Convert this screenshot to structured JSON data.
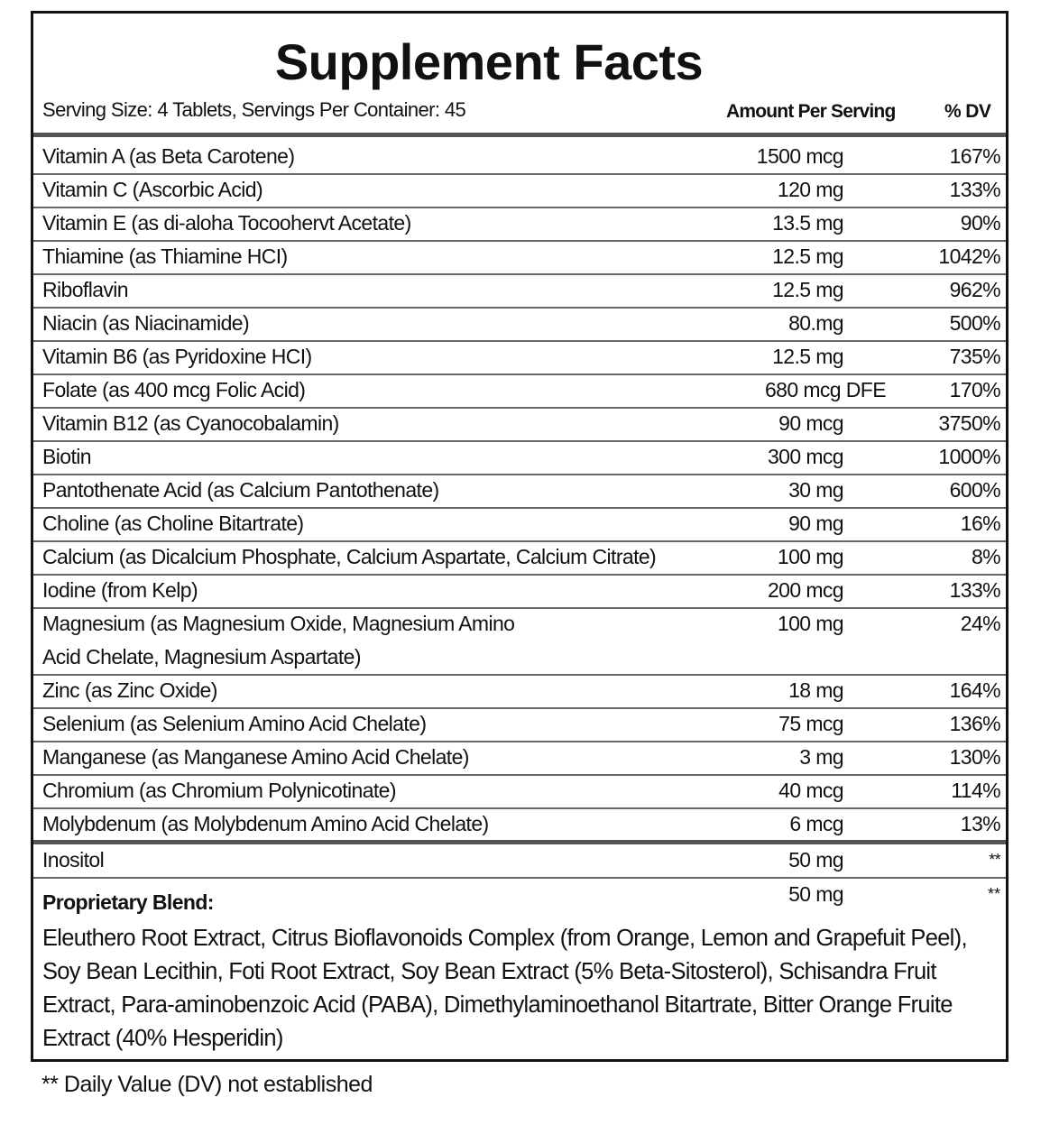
{
  "title": "Supplement Facts",
  "serving_info": "Serving Size: 4 Tablets, Servings Per Container: 45",
  "header_amount": "Amount Per Serving",
  "header_dv": "% DV",
  "nutrients": [
    {
      "name": "Vitamin A (as Beta Carotene)",
      "amount": "1500 mcg",
      "dv": "167%"
    },
    {
      "name": "Vitamin C (Ascorbic Acid)",
      "amount": "120 mg",
      "dv": "133%"
    },
    {
      "name": "Vitamin E (as di-aloha Tocoohervt Acetate)",
      "amount": "13.5 mg",
      "dv": "90%"
    },
    {
      "name": "Thiamine (as Thiamine HCI)",
      "amount": "12.5 mg",
      "dv": "1042%"
    },
    {
      "name": "Riboflavin",
      "amount": "12.5 mg",
      "dv": "962%"
    },
    {
      "name": "Niacin (as Niacinamide)",
      "amount": "80.mg",
      "dv": "500%"
    },
    {
      "name": "Vitamin B6 (as Pyridoxine HCI)",
      "amount": "12.5 mg",
      "dv": "735%"
    },
    {
      "name": "Folate (as 400 mcg Folic Acid)",
      "amount": "680 mcg DFE",
      "dv": "170%"
    },
    {
      "name": "Vitamin B12 (as Cyanocobalamin)",
      "amount": "90 mcg",
      "dv": "3750%"
    },
    {
      "name": "Biotin",
      "amount": "300 mcg",
      "dv": "1000%"
    },
    {
      "name": "Pantothenate Acid (as Calcium Pantothenate)",
      "amount": "30 mg",
      "dv": "600%"
    },
    {
      "name": "Choline (as Choline Bitartrate)",
      "amount": "90 mg",
      "dv": "16%"
    },
    {
      "name": "Calcium (as Dicalcium Phosphate, Calcium Aspartate, Calcium Citrate)",
      "amount": "100 mg",
      "dv": "8%"
    },
    {
      "name": "Iodine (from Kelp)",
      "amount": "200 mcg",
      "dv": "133%"
    },
    {
      "name": "Magnesium (as Magnesium Oxide, Magnesium Amino",
      "name_line2": "Acid Chelate, Magnesium Aspartate)",
      "amount": "100 mg",
      "dv": "24%"
    },
    {
      "name": "Zinc (as Zinc Oxide)",
      "amount": "18 mg",
      "dv": "164%"
    },
    {
      "name": "Selenium (as Selenium Amino Acid Chelate)",
      "amount": "75 mcg",
      "dv": "136%"
    },
    {
      "name": "Manganese (as Manganese Amino Acid Chelate)",
      "amount": "3 mg",
      "dv": "130%"
    },
    {
      "name": "Chromium (as Chromium Polynicotinate)",
      "amount": "40 mcg",
      "dv": "114%"
    },
    {
      "name": "Molybdenum (as Molybdenum Amino Acid Chelate)",
      "amount": "6 mcg",
      "dv": "13%"
    }
  ],
  "inositol": {
    "name": "Inositol",
    "amount": "50 mg",
    "dv": "**"
  },
  "blend": {
    "title": "Proprietary Blend:",
    "amount": "50 mg",
    "dv": "**",
    "ingredients": "Eleuthero Root Extract, Citrus Bioflavonoids Complex (from Orange, Lemon and Grapefuit Peel), Soy Bean Lecithin, Foti Root Extract, Soy Bean Extract (5% Beta-Sitosterol), Schisandra Fruit Extract, Para-aminobenzoic Acid (PABA), Dimethylaminoethanol Bitartrate, Bitter Orange Fruite Extract (40% Hesperidin)"
  },
  "footnote": "** Daily Value (DV) not established"
}
